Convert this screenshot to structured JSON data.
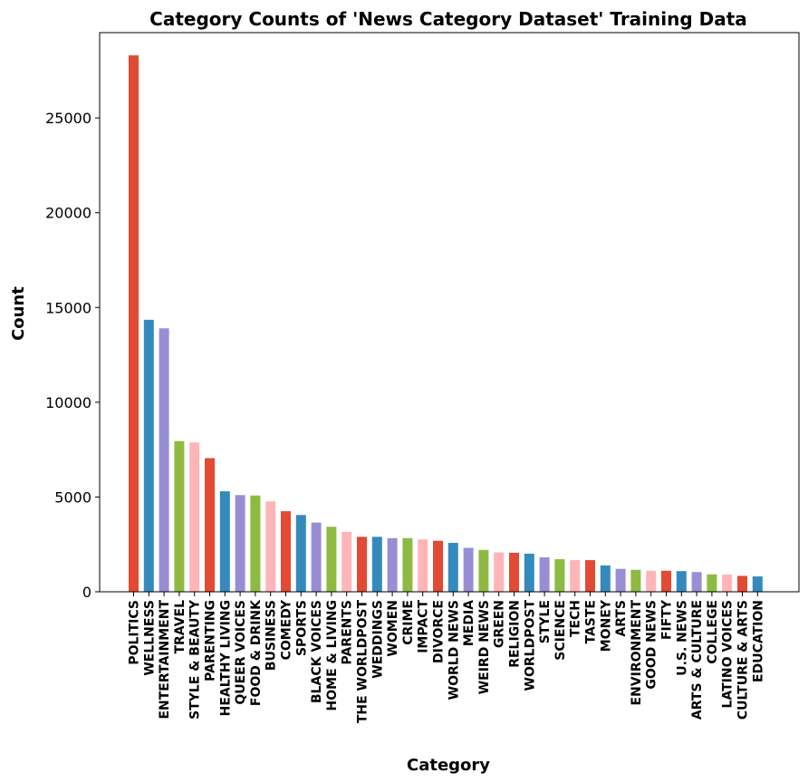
{
  "chart_data": {
    "type": "bar",
    "title": "Category Counts of 'News Category Dataset' Training Data",
    "xlabel": "Category",
    "ylabel": "Count",
    "ylim": [
      0,
      29500
    ],
    "yticks": [
      0,
      5000,
      10000,
      15000,
      20000,
      25000
    ],
    "grid": false,
    "legend": "none",
    "categories": [
      "POLITICS",
      "WELLNESS",
      "ENTERTAINMENT",
      "TRAVEL",
      "STYLE & BEAUTY",
      "PARENTING",
      "HEALTHY LIVING",
      "QUEER VOICES",
      "FOOD & DRINK",
      "BUSINESS",
      "COMEDY",
      "SPORTS",
      "BLACK VOICES",
      "HOME & LIVING",
      "PARENTS",
      "THE WORLDPOST",
      "WEDDINGS",
      "WOMEN",
      "CRIME",
      "IMPACT",
      "DIVORCE",
      "WORLD NEWS",
      "MEDIA",
      "WEIRD NEWS",
      "GREEN",
      "RELIGION",
      "WORLDPOST",
      "STYLE",
      "SCIENCE",
      "TECH",
      "TASTE",
      "MONEY",
      "ARTS",
      "ENVIRONMENT",
      "GOOD NEWS",
      "FIFTY",
      "U.S. NEWS",
      "ARTS & CULTURE",
      "COLLEGE",
      "LATINO VOICES",
      "CULTURE & ARTS",
      "EDUCATION"
    ],
    "values": [
      28300,
      14350,
      13900,
      7950,
      7880,
      7050,
      5300,
      5100,
      5080,
      4770,
      4250,
      4050,
      3650,
      3430,
      3160,
      2900,
      2900,
      2830,
      2830,
      2760,
      2690,
      2580,
      2320,
      2210,
      2080,
      2060,
      2010,
      1820,
      1720,
      1670,
      1670,
      1390,
      1210,
      1160,
      1110,
      1110,
      1090,
      1040,
      920,
      910,
      840,
      810
    ],
    "palette": [
      "#e24a33",
      "#348abd",
      "#988ed5",
      "#8eba42",
      "#ffb5b8"
    ]
  }
}
